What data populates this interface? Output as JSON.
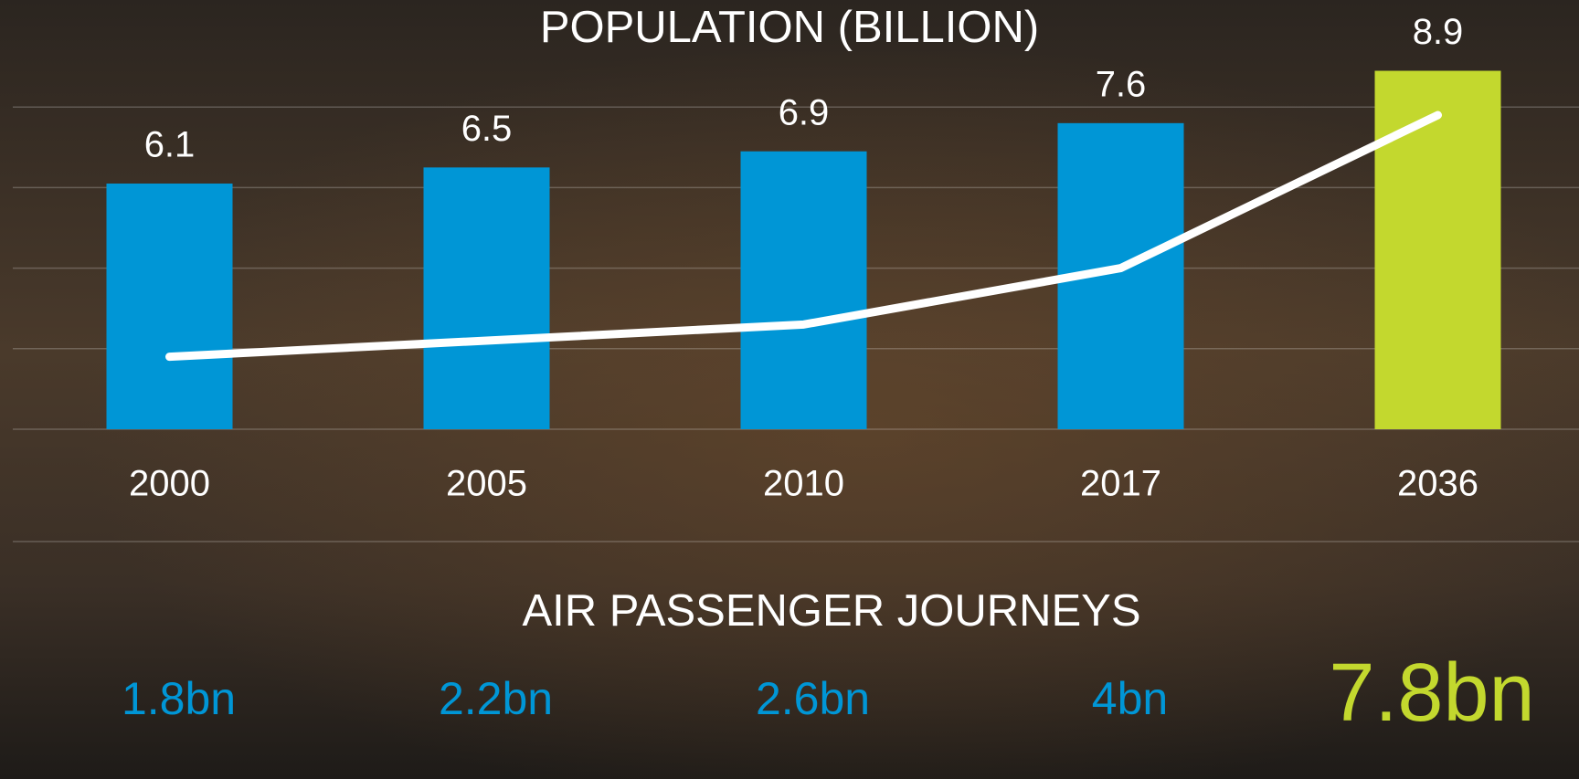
{
  "chart_data": {
    "type": "bar-line",
    "categories": [
      "2000",
      "2005",
      "2010",
      "2017",
      "2036"
    ],
    "series": [
      {
        "name": "POPULATION (BILLION)",
        "type": "bar",
        "values": [
          6.1,
          6.5,
          6.9,
          7.6,
          8.9
        ],
        "colors": [
          "#0096d6",
          "#0096d6",
          "#0096d6",
          "#0096d6",
          "#c3d82e"
        ]
      },
      {
        "name": "AIR PASSENGER JOURNEYS",
        "type": "line",
        "color": "#ffffff",
        "values": [
          1.8,
          2.2,
          2.6,
          4,
          7.8
        ],
        "value_labels": [
          "1.8bn",
          "2.2bn",
          "2.6bn",
          "4bn",
          "7.8bn"
        ],
        "label_colors": [
          "#0096d6",
          "#0096d6",
          "#0096d6",
          "#0096d6",
          "#c3d82e"
        ]
      }
    ],
    "ylim": [
      0,
      10
    ],
    "yticks": [
      0,
      2,
      4,
      6,
      8
    ],
    "grid": true
  }
}
